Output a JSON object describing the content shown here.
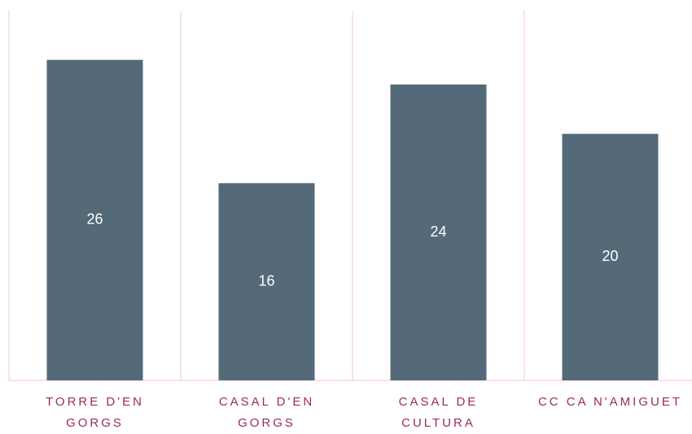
{
  "chart_data": {
    "type": "bar",
    "categories": [
      "TORRE D'EN GORGS",
      "CASAL D'EN GORGS",
      "CASAL DE CULTURA",
      "CC CA N'AMIGUET"
    ],
    "values": [
      26,
      16,
      24,
      20
    ],
    "color": "#546a78",
    "ylim": [
      0,
      30
    ]
  }
}
